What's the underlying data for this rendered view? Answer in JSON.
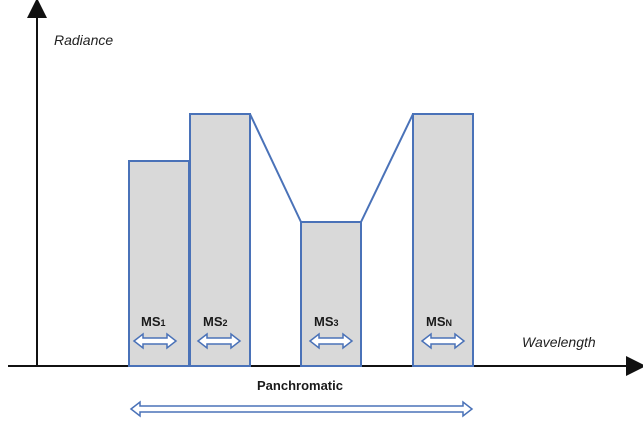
{
  "axes": {
    "y_label": "Radiance",
    "x_label": "Wavelength"
  },
  "bands": [
    {
      "label": "MS",
      "sub": "1",
      "level": 0.57
    },
    {
      "label": "MS",
      "sub": "2",
      "level": 0.7
    },
    {
      "label": "MS",
      "sub": "3",
      "level": 0.4
    },
    {
      "label": "MS",
      "sub": "N",
      "level": 0.7
    }
  ],
  "panchromatic": {
    "label": "Panchromatic"
  },
  "colors": {
    "bar_fill": "#d9d9d9",
    "bar_stroke": "#4a72b8",
    "arrow_stroke": "#4a72b8",
    "axis": "#111111"
  }
}
